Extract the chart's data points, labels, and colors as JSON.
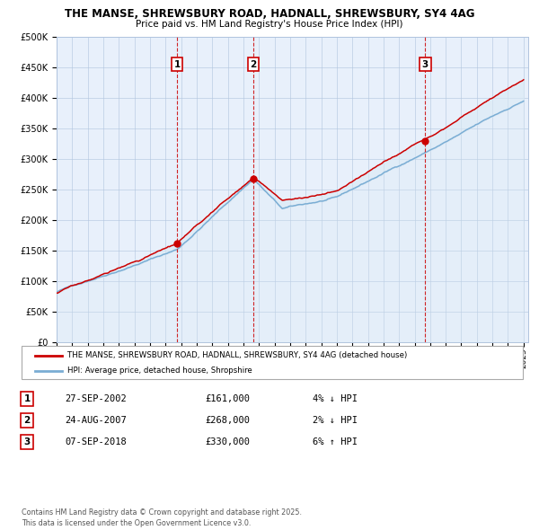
{
  "title_line1": "THE MANSE, SHREWSBURY ROAD, HADNALL, SHREWSBURY, SY4 4AG",
  "title_line2": "Price paid vs. HM Land Registry's House Price Index (HPI)",
  "ylim": [
    0,
    500000
  ],
  "yticks": [
    0,
    50000,
    100000,
    150000,
    200000,
    250000,
    300000,
    350000,
    400000,
    450000,
    500000
  ],
  "ytick_labels": [
    "£0",
    "£50K",
    "£100K",
    "£150K",
    "£200K",
    "£250K",
    "£300K",
    "£350K",
    "£400K",
    "£450K",
    "£500K"
  ],
  "red_line_color": "#cc0000",
  "blue_line_color": "#7aadd4",
  "blue_fill_color": "#daeaf5",
  "background_color": "#e8f0fb",
  "sale_times": [
    2002.74,
    2007.65,
    2018.68
  ],
  "sale_prices": [
    161000,
    268000,
    330000
  ],
  "legend_red_label": "THE MANSE, SHREWSBURY ROAD, HADNALL, SHREWSBURY, SY4 4AG (detached house)",
  "legend_blue_label": "HPI: Average price, detached house, Shropshire",
  "table_rows": [
    [
      "1",
      "27-SEP-2002",
      "£161,000",
      "4% ↓ HPI"
    ],
    [
      "2",
      "24-AUG-2007",
      "£268,000",
      "2% ↓ HPI"
    ],
    [
      "3",
      "07-SEP-2018",
      "£330,000",
      "6% ↑ HPI"
    ]
  ],
  "footnote": "Contains HM Land Registry data © Crown copyright and database right 2025.\nThis data is licensed under the Open Government Licence v3.0.",
  "grid_color": "#b0c4de",
  "vline_color": "#cc0000",
  "box_color": "#cc0000"
}
